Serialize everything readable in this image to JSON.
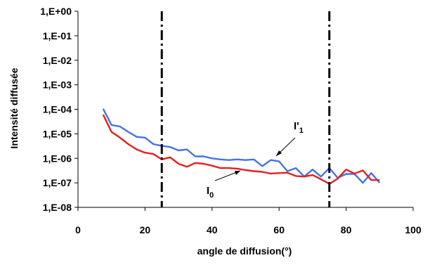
{
  "chart_data": {
    "type": "line",
    "xlabel": "angle de diffusion(°)",
    "ylabel": "Intensité diffusée",
    "xlim": [
      0,
      100
    ],
    "ylim": [
      1e-08,
      1
    ],
    "y_scale": "log",
    "x_ticks": [
      "0",
      "20",
      "40",
      "60",
      "80",
      "100"
    ],
    "y_ticks": [
      "1,E-08",
      "1,E-07",
      "1,E-06",
      "1,E-05",
      "1,E-04",
      "1,E-03",
      "1,E-02",
      "1,E-01",
      "1,E+00"
    ],
    "grid": false,
    "legend": "none",
    "vertical_lines": [
      {
        "x": 25,
        "style": "dash-dot",
        "color": "#000000"
      },
      {
        "x": 75,
        "style": "dash-dot",
        "color": "#000000"
      }
    ],
    "series": [
      {
        "label_main": "I'",
        "label_sub": "1",
        "color": "#4472e8",
        "x": [
          7.5,
          10,
          12.5,
          15,
          17.5,
          20,
          22.5,
          25,
          27.5,
          30,
          32.5,
          35,
          37.5,
          40,
          42.5,
          45,
          47.5,
          50,
          52.5,
          55,
          57.5,
          60,
          62.5,
          65,
          67.5,
          70,
          72.5,
          75,
          77.5,
          80,
          82.5,
          85,
          87.5,
          90
        ],
        "y": [
          0.000105,
          2.3e-05,
          2e-05,
          1.2e-05,
          7.5e-06,
          7e-06,
          3.8e-06,
          3.2e-06,
          2.9e-06,
          2.1e-06,
          2.3e-06,
          1.2e-06,
          1.2e-06,
          1e-06,
          9e-07,
          8.5e-07,
          9e-07,
          8.5e-07,
          9e-07,
          4.8e-07,
          8.5e-07,
          7.5e-07,
          3e-07,
          4e-07,
          1.8e-07,
          3.5e-07,
          1.8e-07,
          4e-07,
          1.6e-07,
          2.3e-07,
          2.3e-07,
          1e-07,
          2.5e-07,
          1e-07
        ]
      },
      {
        "label_main": "I",
        "label_sub": "0",
        "color": "#e81e1e",
        "x": [
          7.5,
          10,
          12.5,
          15,
          17.5,
          20,
          22.5,
          25,
          27.5,
          30,
          32.5,
          35,
          37.5,
          40,
          42.5,
          45,
          47.5,
          50,
          52.5,
          55,
          57.5,
          60,
          62.5,
          65,
          67.5,
          70,
          72.5,
          75,
          77.5,
          80,
          82.5,
          85,
          87.5,
          90
        ],
        "y": [
          6e-05,
          1.2e-05,
          7e-06,
          3.8e-06,
          2.3e-06,
          1.7e-06,
          1.5e-06,
          9e-07,
          1.1e-06,
          6e-07,
          4.5e-07,
          6.5e-07,
          6e-07,
          5e-07,
          4e-07,
          4e-07,
          3.8e-07,
          3.3e-07,
          3e-07,
          2.8e-07,
          2.4e-07,
          2.5e-07,
          2.6e-07,
          1.9e-07,
          1.8e-07,
          2.1e-07,
          1.4e-07,
          9e-08,
          1.5e-07,
          3.5e-07,
          2.4e-07,
          3.2e-07,
          1.3e-07,
          1.3e-07
        ]
      }
    ]
  }
}
